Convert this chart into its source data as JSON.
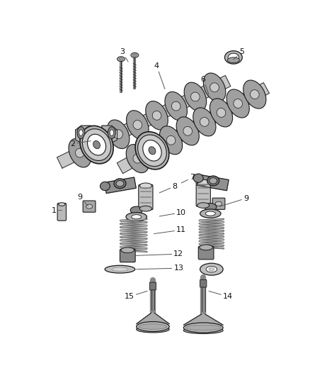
{
  "background_color": "#ffffff",
  "line_color": "#1a1a1a",
  "shade_dark": "#555555",
  "shade_mid": "#888888",
  "shade_light": "#bbbbbb",
  "shade_lighter": "#d8d8d8",
  "label_fontsize": 8,
  "label_color": "#111111"
}
